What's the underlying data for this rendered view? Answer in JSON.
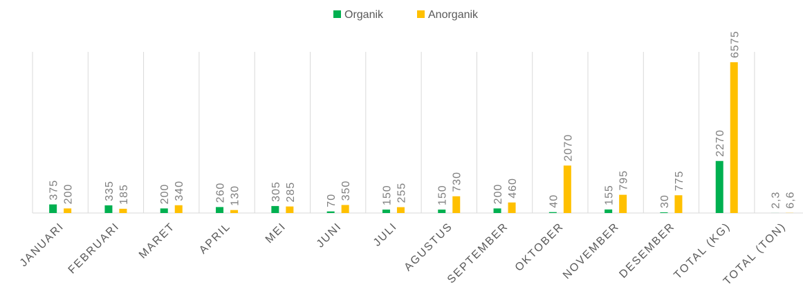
{
  "chart_data": {
    "type": "bar",
    "categories": [
      "JANUARI",
      "FEBRUARI",
      "MARET",
      "APRIL",
      "MEI",
      "JUNI",
      "JULI",
      "AGUSTUS",
      "SEPTEMBER",
      "OKTOBER",
      "NOVEMBER",
      "DESEMBER",
      "TOTAL (KG)",
      "TOTAL (TON)"
    ],
    "series": [
      {
        "name": "Organik",
        "color": "#00b050",
        "values": [
          375,
          335,
          200,
          260,
          305,
          70,
          150,
          150,
          200,
          40,
          155,
          30,
          2270,
          2.3
        ],
        "value_labels": [
          "375",
          "335",
          "200",
          "260",
          "305",
          "70",
          "150",
          "150",
          "200",
          "40",
          "155",
          "30",
          "2270",
          "2,3"
        ]
      },
      {
        "name": "Anorganik",
        "color": "#ffc000",
        "values": [
          200,
          185,
          340,
          130,
          285,
          350,
          255,
          730,
          460,
          2070,
          795,
          775,
          6575,
          6.6
        ],
        "value_labels": [
          "200",
          "185",
          "340",
          "130",
          "285",
          "350",
          "255",
          "730",
          "460",
          "2070",
          "795",
          "775",
          "6575",
          "6,6"
        ]
      }
    ],
    "legend": "top"
  }
}
